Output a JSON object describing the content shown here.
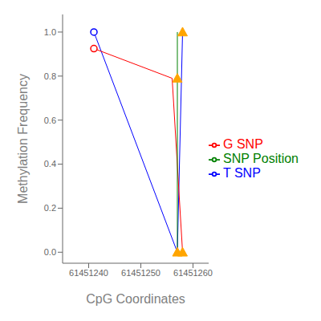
{
  "chart_data": {
    "type": "line",
    "xlabel": "CpG Coordinates",
    "ylabel": "Methylation Frequency",
    "series": [
      {
        "name": "T SNP",
        "type": "line",
        "color": "blue",
        "x": [
          61451241,
          61451257,
          61451258
        ],
        "values": [
          1.0,
          0.0,
          1.0
        ]
      },
      {
        "name": "G SNP",
        "type": "line",
        "color": "red",
        "x": [
          61451241,
          61451256,
          61451258
        ],
        "values": [
          0.925,
          0.79,
          0.0
        ]
      },
      {
        "name": "SNP Position",
        "type": "line",
        "color": "green",
        "x": [
          61451257,
          61451257
        ],
        "values": [
          0.0,
          1.0
        ]
      },
      {
        "type": "scatter",
        "marker": "triangle",
        "color": "orange",
        "x": [
          61451257,
          61451257,
          61451258,
          61451258
        ],
        "values": [
          0.0,
          0.79,
          1.0,
          0.0
        ]
      },
      {
        "type": "scatter",
        "marker": "open_circle",
        "color": "blue",
        "x": [
          61451241
        ],
        "values": [
          1.0
        ]
      },
      {
        "type": "scatter",
        "marker": "open_circle",
        "color": "red",
        "x": [
          61451241
        ],
        "values": [
          0.925
        ]
      }
    ],
    "xlim": [
      61451235,
      61451263
    ],
    "ylim": [
      -0.05,
      1.08
    ],
    "xticks": [
      61451240,
      61451250,
      61451260
    ],
    "yticks": [
      {
        "value": 0,
        "label": "0.0"
      },
      0.2,
      0.4,
      0.6,
      0.8,
      {
        "value": 1,
        "label": "1.0"
      }
    ],
    "grid": false,
    "legend": "center right"
  }
}
